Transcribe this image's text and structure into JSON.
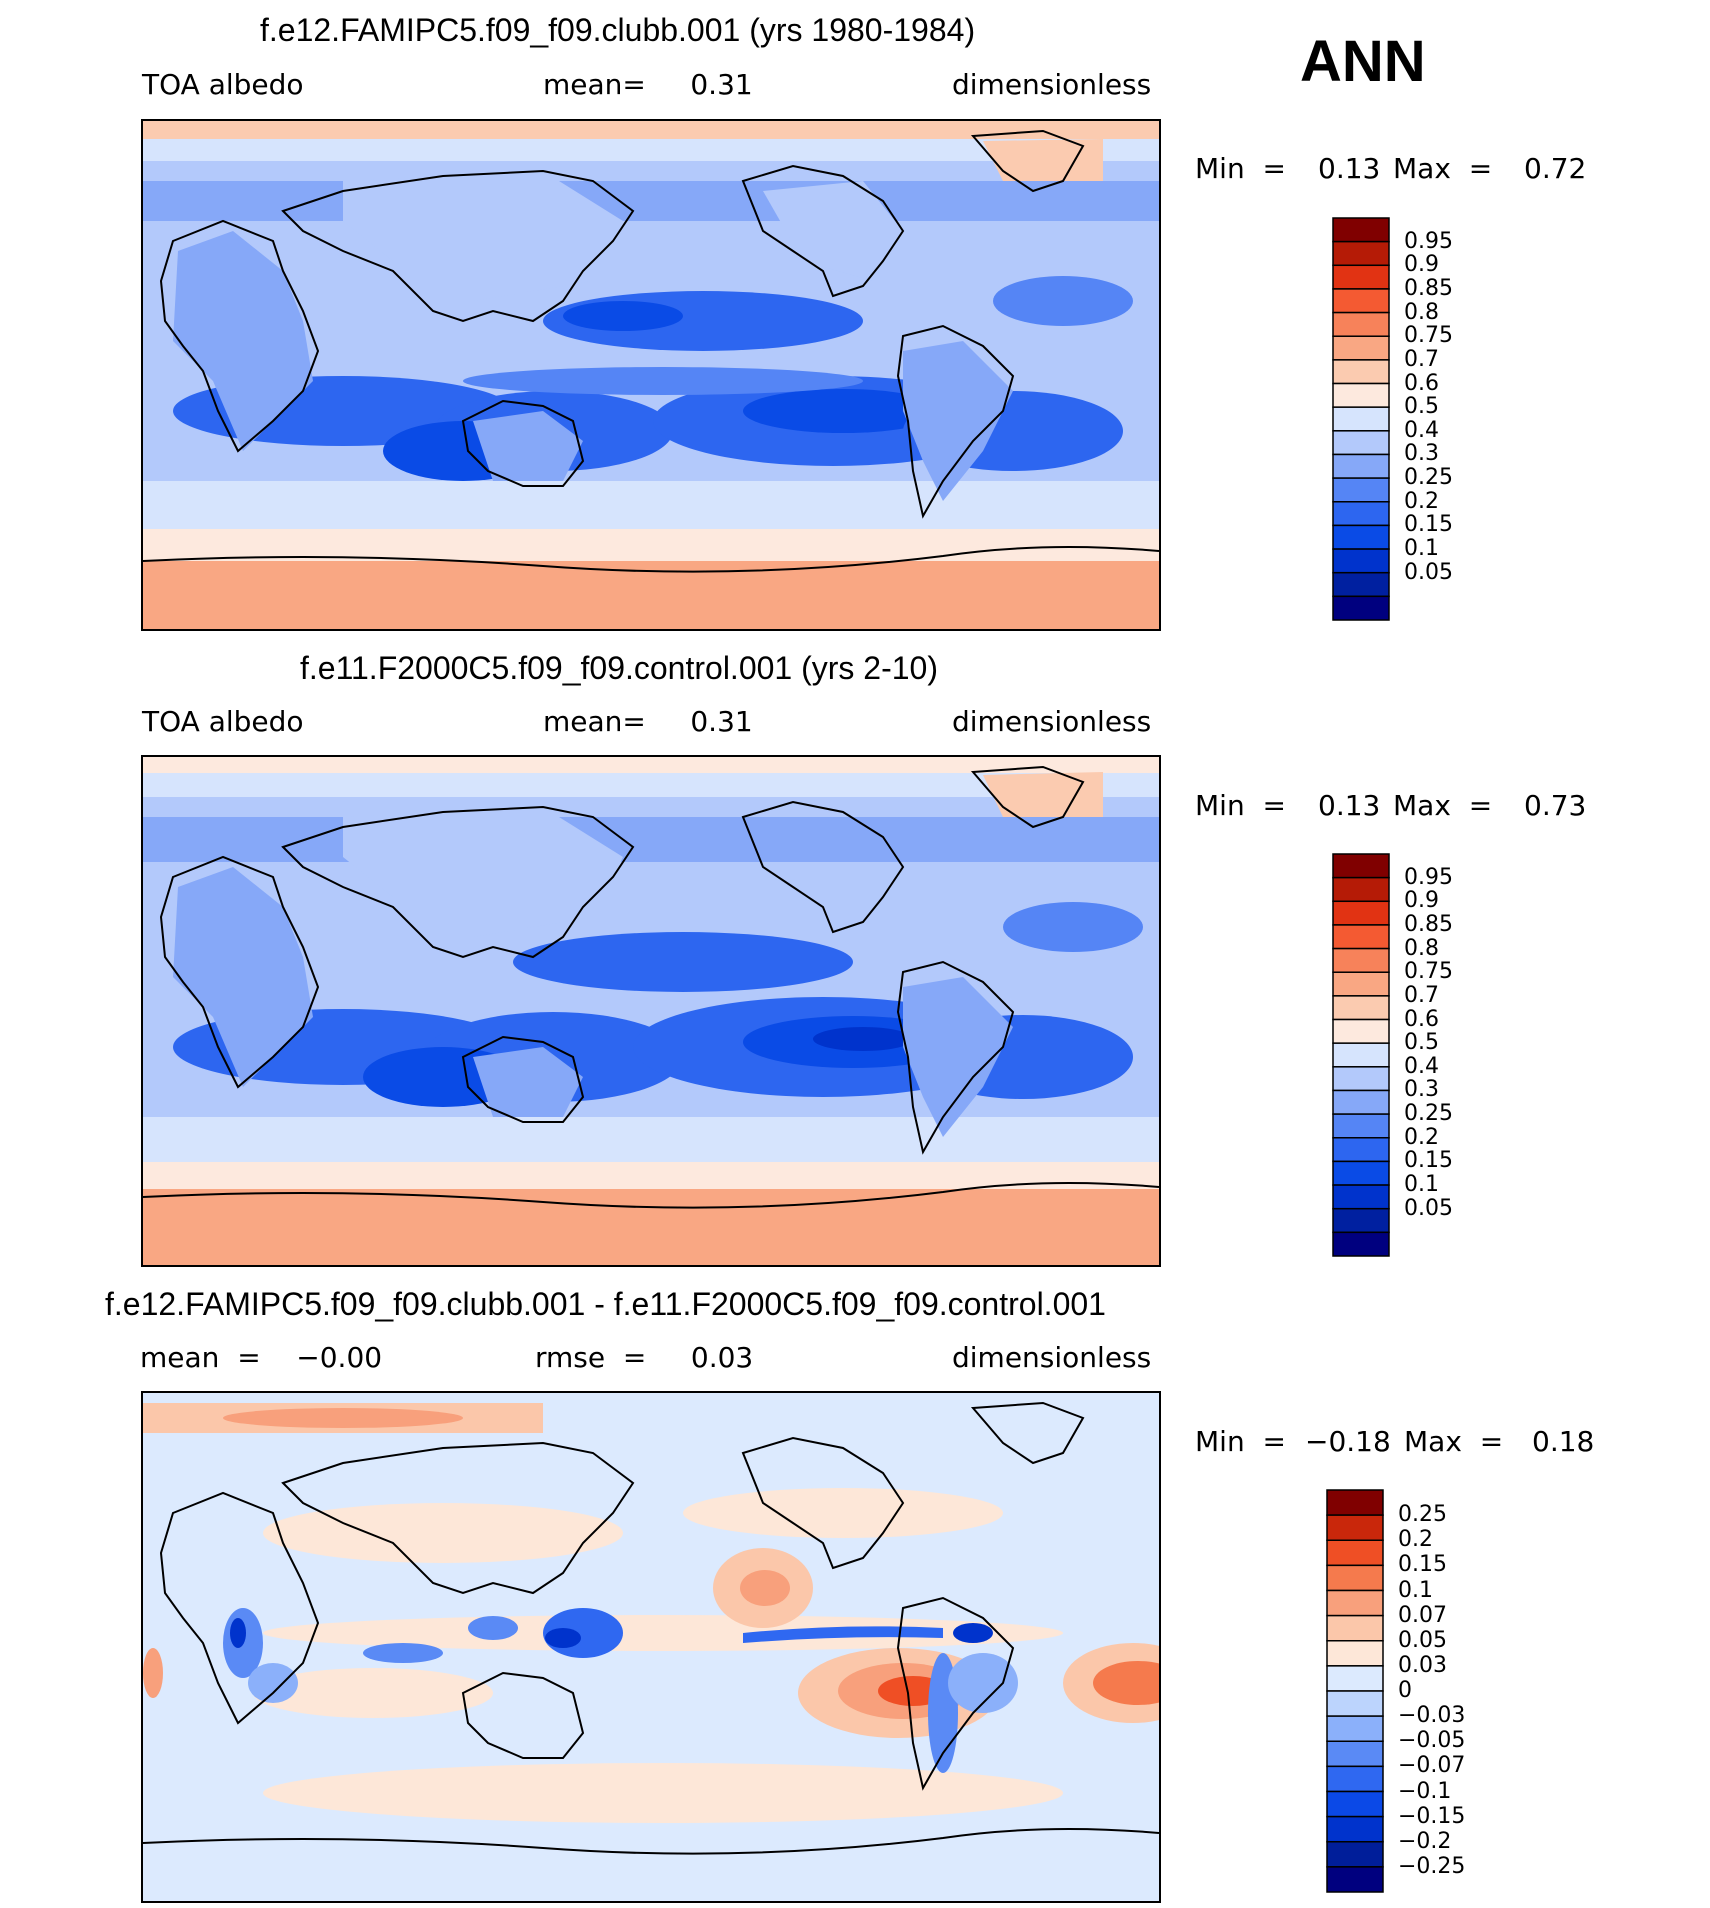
{
  "season": "ANN",
  "colors": {
    "blue_palette": [
      "#00007f",
      "#0020a0",
      "#0033cc",
      "#0a4be6",
      "#2d66f0",
      "#5585f5",
      "#86a8f8",
      "#b3c9fb",
      "#d6e4fd"
    ],
    "red_palette": [
      "#fde9de",
      "#fbcbb0",
      "#f9a783",
      "#f7825a",
      "#f45a32",
      "#e13313",
      "#b51b06",
      "#800000"
    ],
    "diff_blue": [
      "#00007f",
      "#001e9a",
      "#0033cc",
      "#0b49e7",
      "#2f68f1",
      "#5a8af5",
      "#8bb0fa",
      "#bcd4fd",
      "#dceafe"
    ],
    "diff_red": [
      "#fde7d8",
      "#fbc7aa",
      "#f8a07c",
      "#f57a4d",
      "#ef4f25",
      "#c9270b",
      "#800000"
    ]
  },
  "panels": [
    {
      "title": "f.e12.FAMIPC5.f09_f09.clubb.001 (yrs 1980-1984)",
      "left_label": "TOA  albedo",
      "center_label": "mean=     0.31",
      "right_label": "dimensionless",
      "min_label": "Min  =",
      "min_value": "0.13",
      "max_label": "Max  =",
      "max_value": "0.72",
      "colorbar_labels": [
        "0.95",
        "0.9",
        "0.85",
        "0.8",
        "0.75",
        "0.7",
        "0.6",
        "0.5",
        "0.4",
        "0.3",
        "0.25",
        "0.2",
        "0.15",
        "0.1",
        "0.05"
      ]
    },
    {
      "title": "f.e11.F2000C5.f09_f09.control.001 (yrs 2-10)",
      "left_label": "TOA  albedo",
      "center_label": "mean=     0.31",
      "right_label": "dimensionless",
      "min_label": "Min  =",
      "min_value": "0.13",
      "max_label": "Max  =",
      "max_value": "0.73",
      "colorbar_labels": [
        "0.95",
        "0.9",
        "0.85",
        "0.8",
        "0.75",
        "0.7",
        "0.6",
        "0.5",
        "0.4",
        "0.3",
        "0.25",
        "0.2",
        "0.15",
        "0.1",
        "0.05"
      ]
    },
    {
      "title": "f.e12.FAMIPC5.f09_f09.clubb.001 - f.e11.F2000C5.f09_f09.control.001",
      "left_label": "mean  =    −0.00",
      "center_label": "rmse  =     0.03",
      "right_label": "dimensionless",
      "min_label": "Min  =",
      "min_value": "−0.18",
      "max_label": "Max  =",
      "max_value": "0.18",
      "colorbar_labels": [
        "0.25",
        "0.2",
        "0.15",
        "0.1",
        "0.07",
        "0.05",
        "0.03",
        "0",
        "−0.03",
        "−0.05",
        "−0.07",
        "−0.1",
        "−0.15",
        "−0.2",
        "−0.25"
      ]
    }
  ],
  "chart_data": [
    {
      "type": "heatmap",
      "title": "f.e12.FAMIPC5.f09_f09.clubb.001 (yrs 1980-1984)",
      "variable": "TOA albedo",
      "units": "dimensionless",
      "mean": 0.31,
      "min": 0.13,
      "max": 0.72,
      "contour_levels": [
        0.05,
        0.1,
        0.15,
        0.2,
        0.25,
        0.3,
        0.4,
        0.5,
        0.6,
        0.7,
        0.75,
        0.8,
        0.85,
        0.9,
        0.95
      ]
    },
    {
      "type": "heatmap",
      "title": "f.e11.F2000C5.f09_f09.control.001 (yrs 2-10)",
      "variable": "TOA albedo",
      "units": "dimensionless",
      "mean": 0.31,
      "min": 0.13,
      "max": 0.73,
      "contour_levels": [
        0.05,
        0.1,
        0.15,
        0.2,
        0.25,
        0.3,
        0.4,
        0.5,
        0.6,
        0.7,
        0.75,
        0.8,
        0.85,
        0.9,
        0.95
      ]
    },
    {
      "type": "heatmap",
      "title": "f.e12.FAMIPC5.f09_f09.clubb.001 - f.e11.F2000C5.f09_f09.control.001",
      "units": "dimensionless",
      "mean": -0.0,
      "rmse": 0.03,
      "min": -0.18,
      "max": 0.18,
      "contour_levels": [
        -0.25,
        -0.2,
        -0.15,
        -0.1,
        -0.07,
        -0.05,
        -0.03,
        0,
        0.03,
        0.05,
        0.07,
        0.1,
        0.15,
        0.2,
        0.25
      ]
    }
  ]
}
